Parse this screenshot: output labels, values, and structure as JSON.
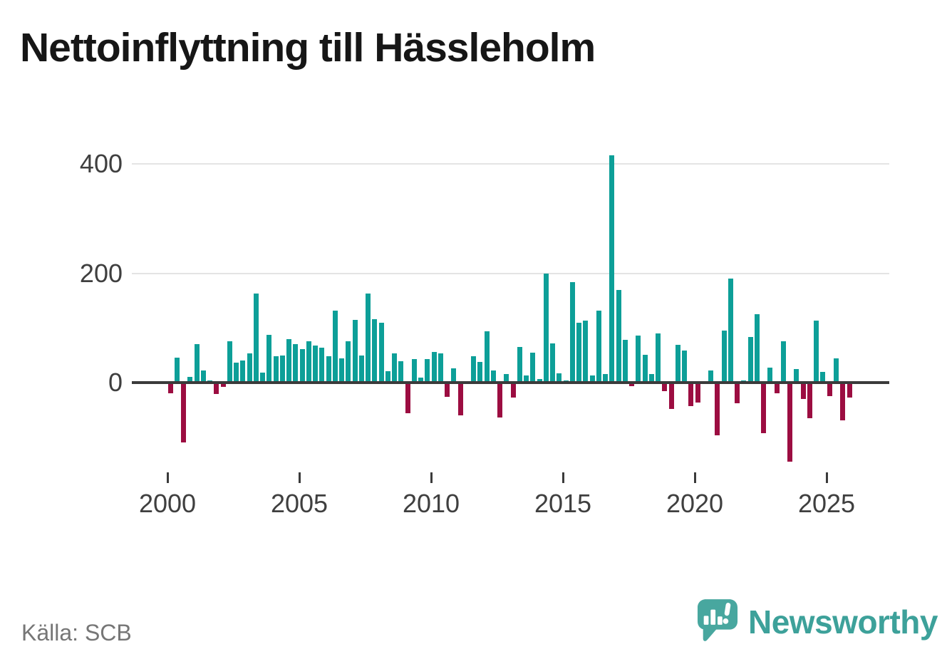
{
  "header": {
    "title": "Nettoinflyttning till Hässleholm"
  },
  "footer": {
    "source": "Källa: SCB",
    "brand": "Newsworthy"
  },
  "colors": {
    "positive_bar": "#0d9f98",
    "negative_bar": "#9c0d41",
    "axis": "#3b3b3b",
    "grid": "#e4e4e4",
    "tick_label": "#3f3f3f",
    "source_text": "#767676",
    "brand_teal": "#3da19a",
    "logo_teal": "#48a79f",
    "title_text": "#161616"
  },
  "chart_data": {
    "type": "bar",
    "title": "Nettoinflyttning till Hässleholm",
    "ylabel": "",
    "xlabel": "",
    "frequency": "quarterly",
    "start_year": 2000,
    "x_tick_labels": [
      "2000",
      "2005",
      "2010",
      "2015",
      "2020",
      "2025"
    ],
    "y_ticks": [
      0,
      200,
      400
    ],
    "y_tick_labels": [
      "0",
      "200",
      "400"
    ],
    "ylim": [
      -155,
      440
    ],
    "grid": "horizontal",
    "legend": false,
    "positive_color": "#0d9f98",
    "negative_color": "#9c0d41",
    "values": [
      -20,
      45,
      -110,
      11,
      70,
      22,
      4,
      -21,
      -8,
      75,
      36,
      40,
      53,
      163,
      18,
      87,
      48,
      49,
      80,
      70,
      61,
      75,
      68,
      64,
      48,
      131,
      44,
      76,
      115,
      50,
      163,
      116,
      110,
      21,
      53,
      39,
      -56,
      43,
      9,
      43,
      56,
      53,
      -26,
      26,
      -60,
      0,
      48,
      38,
      94,
      22,
      -64,
      15,
      -28,
      65,
      13,
      55,
      6,
      200,
      72,
      17,
      4,
      184,
      110,
      113,
      13,
      131,
      16,
      415,
      170,
      78,
      -7,
      86,
      51,
      16,
      90,
      -15,
      -48,
      69,
      59,
      -43,
      -37,
      3,
      22,
      -96,
      95,
      190,
      -38,
      4,
      84,
      125,
      -93,
      28,
      -19,
      75,
      -144,
      25,
      -30,
      -65,
      113,
      20,
      -25,
      44,
      -69,
      -27
    ]
  }
}
